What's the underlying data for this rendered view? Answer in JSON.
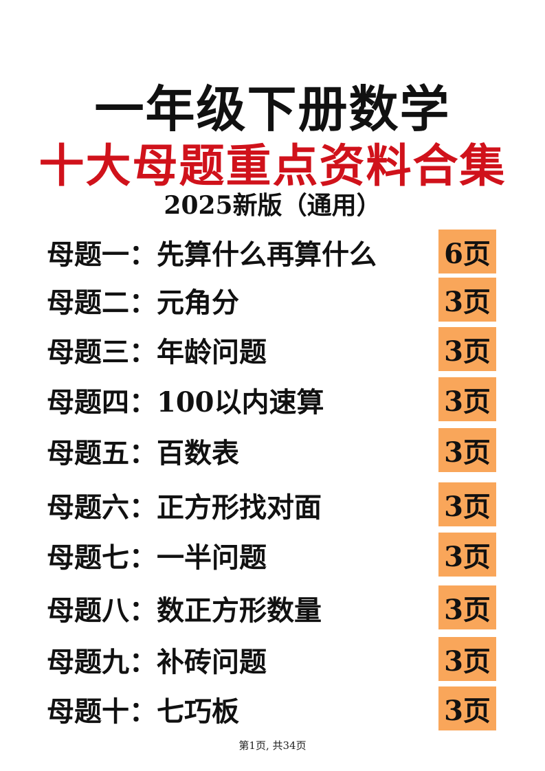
{
  "title": "一年级下册数学",
  "subtitle": "十大母题重点资料合集",
  "edition": "2025新版（通用）",
  "accent_color": "#d0121b",
  "badge_color": "#f9a65a",
  "items": [
    {
      "label": "母题一：先算什么再算什么",
      "pages": "6页"
    },
    {
      "label": "母题二：元角分",
      "pages": "3页"
    },
    {
      "label": "母题三：年龄问题",
      "pages": "3页"
    },
    {
      "label": "母题四：100以内速算",
      "pages": "3页"
    },
    {
      "label": "母题五：百数表",
      "pages": "3页"
    },
    {
      "label": "母题六：正方形找对面",
      "pages": "3页"
    },
    {
      "label": "母题七：一半问题",
      "pages": "3页"
    },
    {
      "label": "母题八：数正方形数量",
      "pages": "3页"
    },
    {
      "label": "母题九：补砖问题",
      "pages": "3页"
    },
    {
      "label": "母题十：七巧板",
      "pages": "3页"
    }
  ],
  "footer": "第1页, 共34页"
}
